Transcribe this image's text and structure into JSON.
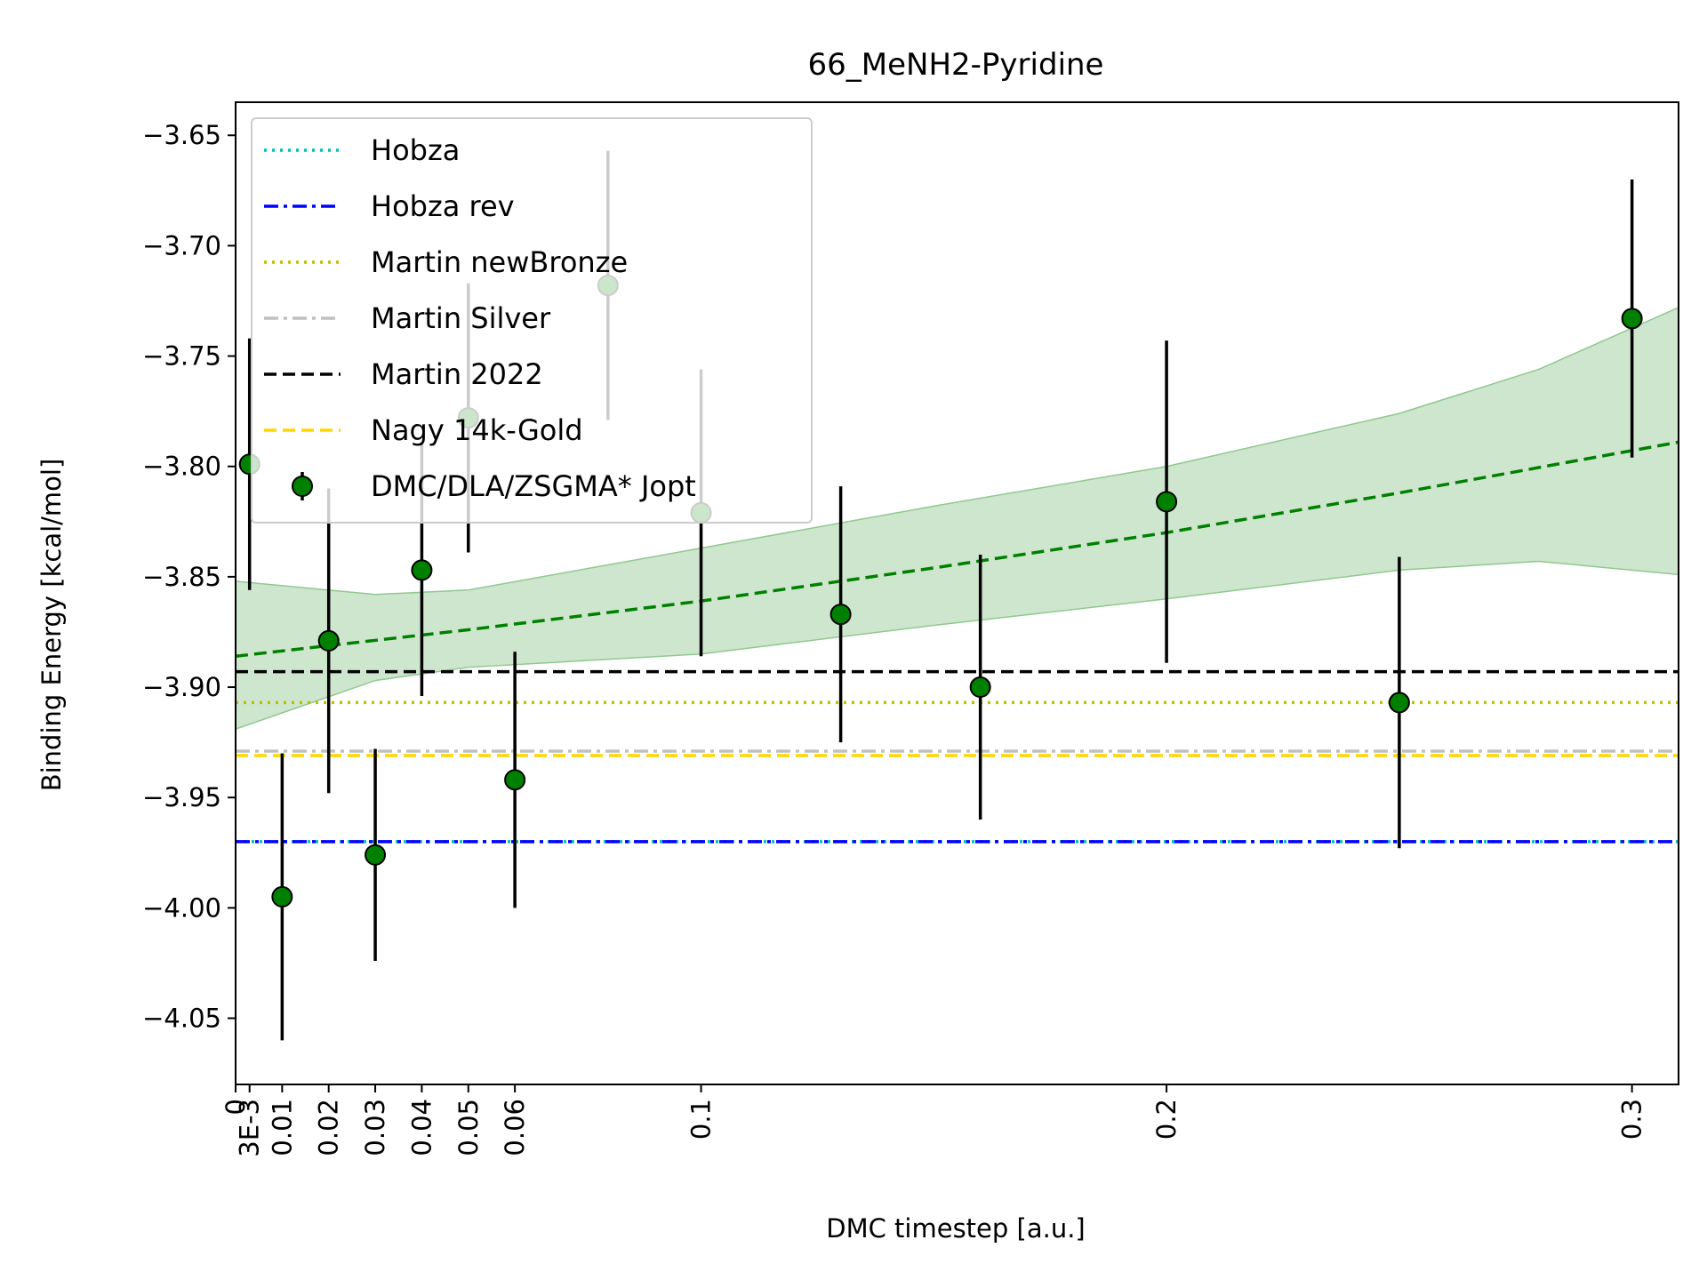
{
  "chart_data": {
    "type": "scatter",
    "title": "66_MeNH2-Pyridine",
    "xlabel": "DMC timestep [a.u.]",
    "ylabel": "Binding Energy [kcal/mol]",
    "xlim": [
      0,
      0.31
    ],
    "ylim": [
      -4.08,
      -3.635
    ],
    "x_ticks": [
      {
        "value": 0,
        "label": "0"
      },
      {
        "value": 0.003,
        "label": "3E-3"
      },
      {
        "value": 0.01,
        "label": "0.01"
      },
      {
        "value": 0.02,
        "label": "0.02"
      },
      {
        "value": 0.03,
        "label": "0.03"
      },
      {
        "value": 0.04,
        "label": "0.04"
      },
      {
        "value": 0.05,
        "label": "0.05"
      },
      {
        "value": 0.06,
        "label": "0.06"
      },
      {
        "value": 0.1,
        "label": "0.1"
      },
      {
        "value": 0.2,
        "label": "0.2"
      },
      {
        "value": 0.3,
        "label": "0.3"
      }
    ],
    "y_ticks": [
      {
        "value": -3.65,
        "label": "−3.65"
      },
      {
        "value": -3.7,
        "label": "−3.70"
      },
      {
        "value": -3.75,
        "label": "−3.75"
      },
      {
        "value": -3.8,
        "label": "−3.80"
      },
      {
        "value": -3.85,
        "label": "−3.85"
      },
      {
        "value": -3.9,
        "label": "−3.90"
      },
      {
        "value": -3.95,
        "label": "−3.95"
      },
      {
        "value": -4.0,
        "label": "−4.00"
      },
      {
        "value": -4.05,
        "label": "−4.05"
      }
    ],
    "reference_lines": [
      {
        "name": "Hobza",
        "value": -3.97,
        "color": "#00bfbf",
        "dash": "dotted"
      },
      {
        "name": "Hobza rev",
        "value": -3.97,
        "color": "#0000ff",
        "dash": "dashdot"
      },
      {
        "name": "Martin newBronze",
        "value": -3.907,
        "color": "#bfbf00",
        "dash": "dotted"
      },
      {
        "name": "Martin Silver",
        "value": -3.929,
        "color": "#c0c0c0",
        "dash": "dashdot"
      },
      {
        "name": "Martin 2022",
        "value": -3.893,
        "color": "#000000",
        "dash": "dashed"
      },
      {
        "name": "Nagy 14k-Gold",
        "value": -3.931,
        "color": "#ffd700",
        "dash": "dashed"
      }
    ],
    "series": [
      {
        "name": "DMC/DLA/ZSGMA* Jopt",
        "color": "#008000",
        "points": [
          {
            "x": 0.003,
            "y": -3.799,
            "err": 0.057
          },
          {
            "x": 0.01,
            "y": -3.995,
            "err": 0.065
          },
          {
            "x": 0.02,
            "y": -3.879,
            "err": 0.069
          },
          {
            "x": 0.03,
            "y": -3.976,
            "err": 0.048
          },
          {
            "x": 0.04,
            "y": -3.847,
            "err": 0.057
          },
          {
            "x": 0.05,
            "y": -3.778,
            "err": 0.061
          },
          {
            "x": 0.06,
            "y": -3.942,
            "err": 0.058
          },
          {
            "x": 0.08,
            "y": -3.718,
            "err": 0.061
          },
          {
            "x": 0.1,
            "y": -3.821,
            "err": 0.065
          },
          {
            "x": 0.13,
            "y": -3.867,
            "err": 0.058
          },
          {
            "x": 0.16,
            "y": -3.9,
            "err": 0.06
          },
          {
            "x": 0.2,
            "y": -3.816,
            "err": 0.073
          },
          {
            "x": 0.25,
            "y": -3.907,
            "err": 0.066
          },
          {
            "x": 0.3,
            "y": -3.733,
            "err": 0.063
          }
        ]
      }
    ],
    "fit": {
      "color": "#008000",
      "band_color": "#90c890",
      "curve": [
        {
          "x": 0,
          "y": -3.886
        },
        {
          "x": 0.05,
          "y": -3.874
        },
        {
          "x": 0.1,
          "y": -3.861
        },
        {
          "x": 0.15,
          "y": -3.846
        },
        {
          "x": 0.2,
          "y": -3.83
        },
        {
          "x": 0.25,
          "y": -3.812
        },
        {
          "x": 0.31,
          "y": -3.789
        }
      ],
      "band_upper": [
        {
          "x": 0,
          "y": -3.852
        },
        {
          "x": 0.03,
          "y": -3.858
        },
        {
          "x": 0.05,
          "y": -3.856
        },
        {
          "x": 0.1,
          "y": -3.837
        },
        {
          "x": 0.15,
          "y": -3.818
        },
        {
          "x": 0.2,
          "y": -3.8
        },
        {
          "x": 0.25,
          "y": -3.776
        },
        {
          "x": 0.28,
          "y": -3.756
        },
        {
          "x": 0.31,
          "y": -3.728
        }
      ],
      "band_lower": [
        {
          "x": 0,
          "y": -3.919
        },
        {
          "x": 0.03,
          "y": -3.897
        },
        {
          "x": 0.05,
          "y": -3.891
        },
        {
          "x": 0.1,
          "y": -3.885
        },
        {
          "x": 0.15,
          "y": -3.872
        },
        {
          "x": 0.2,
          "y": -3.86
        },
        {
          "x": 0.25,
          "y": -3.847
        },
        {
          "x": 0.28,
          "y": -3.843
        },
        {
          "x": 0.31,
          "y": -3.849
        }
      ]
    },
    "grid": false,
    "legend_position": "upper-left",
    "legend_entries": [
      "Hobza",
      "Hobza rev",
      "Martin newBronze",
      "Martin Silver",
      "Martin 2022",
      "Nagy 14k-Gold",
      "DMC/DLA/ZSGMA* Jopt"
    ]
  }
}
